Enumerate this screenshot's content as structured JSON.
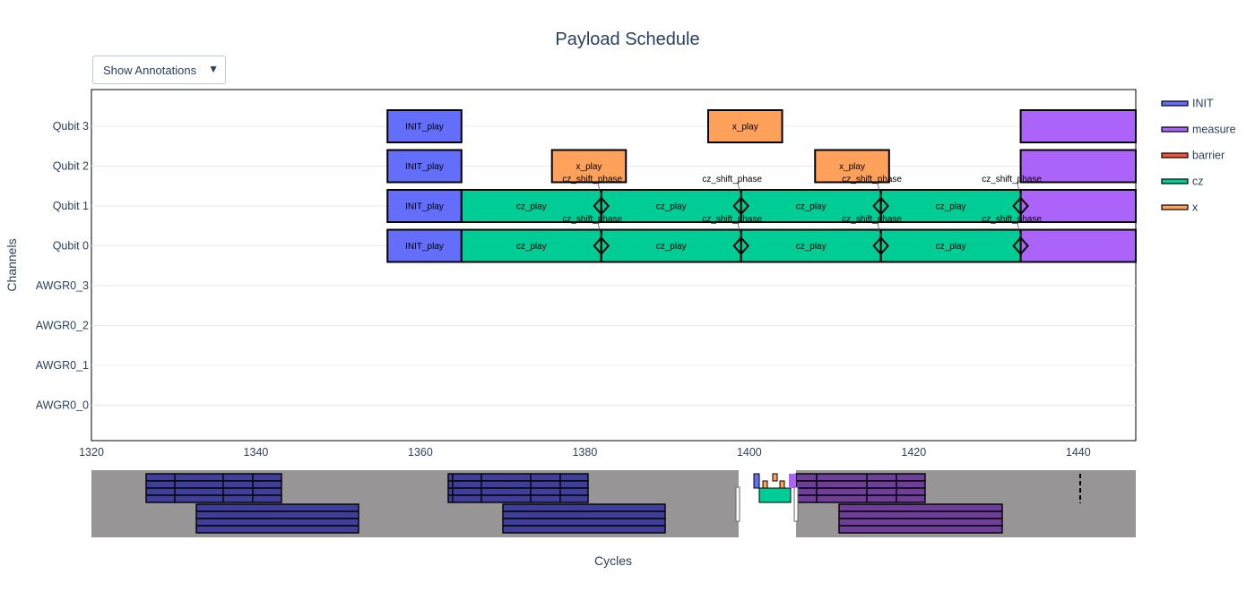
{
  "chart_data": {
    "type": "timeline",
    "title": "Payload Schedule",
    "xlabel": "Cycles",
    "ylabel": "Channels",
    "xlim": [
      1320,
      1447
    ],
    "xticks": [
      1320,
      1340,
      1360,
      1380,
      1400,
      1420,
      1440
    ],
    "channels": [
      "Qubit 3",
      "Qubit 2",
      "Qubit 1",
      "Qubit 0",
      "AWGR0_3",
      "AWGR0_2",
      "AWGR0_1",
      "AWGR0_0"
    ],
    "colors": {
      "INIT": "#636efa",
      "measure": "#ab63fa",
      "barrier": "#ef553b",
      "cz": "#00cc96",
      "x": "#ffa15a"
    },
    "legend": [
      {
        "name": "INIT",
        "key": "INIT"
      },
      {
        "name": "measure",
        "key": "measure"
      },
      {
        "name": "barrier",
        "key": "barrier"
      },
      {
        "name": "cz",
        "key": "cz"
      },
      {
        "name": "x",
        "key": "x"
      }
    ],
    "blocks": [
      {
        "channel": "Qubit 3",
        "start": 1356,
        "end": 1365,
        "kind": "INIT",
        "label": "INIT_play"
      },
      {
        "channel": "Qubit 3",
        "start": 1395,
        "end": 1404,
        "kind": "x",
        "label": "x_play"
      },
      {
        "channel": "Qubit 3",
        "start": 1433,
        "end": 1447,
        "kind": "measure",
        "label": ""
      },
      {
        "channel": "Qubit 2",
        "start": 1356,
        "end": 1365,
        "kind": "INIT",
        "label": "INIT_play"
      },
      {
        "channel": "Qubit 2",
        "start": 1376,
        "end": 1385,
        "kind": "x",
        "label": "x_play"
      },
      {
        "channel": "Qubit 2",
        "start": 1408,
        "end": 1417,
        "kind": "x",
        "label": "x_play"
      },
      {
        "channel": "Qubit 2",
        "start": 1433,
        "end": 1447,
        "kind": "measure",
        "label": ""
      },
      {
        "channel": "Qubit 1",
        "start": 1356,
        "end": 1365,
        "kind": "INIT",
        "label": "INIT_play"
      },
      {
        "channel": "Qubit 1",
        "start": 1365,
        "end": 1382,
        "kind": "cz",
        "label": "cz_play"
      },
      {
        "channel": "Qubit 1",
        "start": 1382,
        "end": 1399,
        "kind": "cz",
        "label": "cz_play"
      },
      {
        "channel": "Qubit 1",
        "start": 1399,
        "end": 1416,
        "kind": "cz",
        "label": "cz_play"
      },
      {
        "channel": "Qubit 1",
        "start": 1416,
        "end": 1433,
        "kind": "cz",
        "label": "cz_play"
      },
      {
        "channel": "Qubit 1",
        "start": 1433,
        "end": 1447,
        "kind": "measure",
        "label": ""
      },
      {
        "channel": "Qubit 0",
        "start": 1356,
        "end": 1365,
        "kind": "INIT",
        "label": "INIT_play"
      },
      {
        "channel": "Qubit 0",
        "start": 1365,
        "end": 1382,
        "kind": "cz",
        "label": "cz_play"
      },
      {
        "channel": "Qubit 0",
        "start": 1382,
        "end": 1399,
        "kind": "cz",
        "label": "cz_play"
      },
      {
        "channel": "Qubit 0",
        "start": 1399,
        "end": 1416,
        "kind": "cz",
        "label": "cz_play"
      },
      {
        "channel": "Qubit 0",
        "start": 1416,
        "end": 1433,
        "kind": "cz",
        "label": "cz_play"
      },
      {
        "channel": "Qubit 0",
        "start": 1433,
        "end": 1447,
        "kind": "measure",
        "label": ""
      }
    ],
    "markers": [
      {
        "channel": "Qubit 1",
        "x": 1382,
        "label": "cz_shift_phase"
      },
      {
        "channel": "Qubit 1",
        "x": 1399,
        "label": "cz_shift_phase"
      },
      {
        "channel": "Qubit 1",
        "x": 1416,
        "label": "cz_shift_phase"
      },
      {
        "channel": "Qubit 1",
        "x": 1433,
        "label": "cz_shift_phase"
      },
      {
        "channel": "Qubit 0",
        "x": 1382,
        "label": "cz_shift_phase"
      },
      {
        "channel": "Qubit 0",
        "x": 1399,
        "label": "cz_shift_phase"
      },
      {
        "channel": "Qubit 0",
        "x": 1416,
        "label": "cz_shift_phase"
      },
      {
        "channel": "Qubit 0",
        "x": 1433,
        "label": "cz_shift_phase"
      }
    ]
  },
  "controls": {
    "annotations_dropdown": "Show Annotations",
    "dropdown_arrow": "▼"
  }
}
